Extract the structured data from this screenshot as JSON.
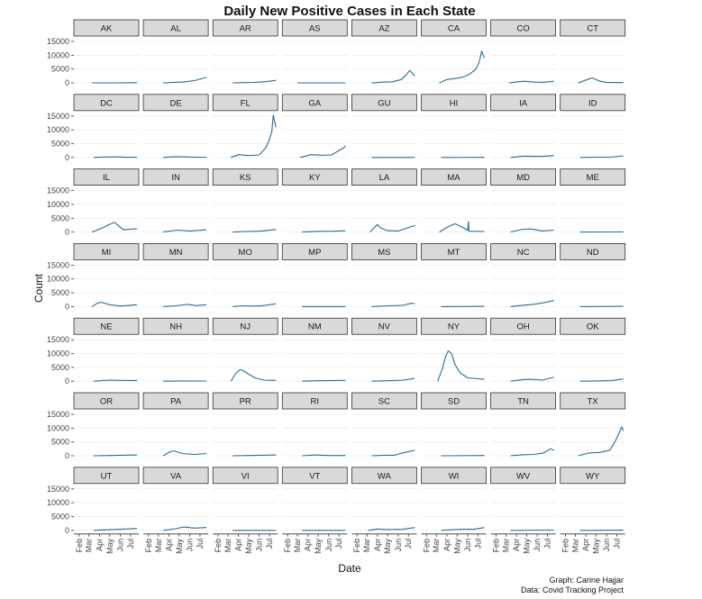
{
  "chart_data": {
    "type": "line",
    "title": "Daily New Positive Cases in Each State",
    "xlabel": "Date",
    "ylabel": "Count",
    "ylim": [
      0,
      15000
    ],
    "y_ticks": [
      0,
      5000,
      10000,
      15000
    ],
    "x_ticks": [
      "Feb",
      "Mar",
      "Apr",
      "May",
      "Jun",
      "Jul"
    ],
    "x_range": [
      "2020-01-22",
      "2020-07-20"
    ],
    "facets": {
      "ncol": 8,
      "nrow": 7
    },
    "series_color": "#2e6b96",
    "strip_color": "#d9d9d9",
    "caption": [
      "Graph: Carine Hajjar",
      "Data: Covid Tracking Project"
    ],
    "series": [
      {
        "name": "AK",
        "dates": [
          "2020-03-10",
          "2020-04-15",
          "2020-05-20",
          "2020-06-20",
          "2020-07-20"
        ],
        "values": [
          0,
          5,
          10,
          20,
          60
        ]
      },
      {
        "name": "AL",
        "dates": [
          "2020-03-15",
          "2020-04-15",
          "2020-05-15",
          "2020-06-15",
          "2020-07-05",
          "2020-07-20"
        ],
        "values": [
          0,
          200,
          350,
          800,
          1500,
          2000
        ]
      },
      {
        "name": "AR",
        "dates": [
          "2020-03-15",
          "2020-04-15",
          "2020-05-15",
          "2020-06-15",
          "2020-07-05",
          "2020-07-20"
        ],
        "values": [
          0,
          100,
          150,
          400,
          700,
          900
        ]
      },
      {
        "name": "AS",
        "dates": [
          "2020-03-01",
          "2020-07-20"
        ],
        "values": [
          0,
          0
        ]
      },
      {
        "name": "AZ",
        "dates": [
          "2020-03-15",
          "2020-04-15",
          "2020-05-15",
          "2020-06-10",
          "2020-06-25",
          "2020-07-05",
          "2020-07-12",
          "2020-07-20"
        ],
        "values": [
          0,
          250,
          400,
          1200,
          3000,
          4500,
          3500,
          2500
        ]
      },
      {
        "name": "CA",
        "dates": [
          "2020-03-10",
          "2020-04-01",
          "2020-04-20",
          "2020-05-15",
          "2020-06-05",
          "2020-06-25",
          "2020-07-05",
          "2020-07-12",
          "2020-07-20"
        ],
        "values": [
          0,
          1200,
          1500,
          2000,
          3000,
          5000,
          7500,
          11500,
          9000
        ]
      },
      {
        "name": "CO",
        "dates": [
          "2020-03-10",
          "2020-04-05",
          "2020-04-25",
          "2020-05-20",
          "2020-06-20",
          "2020-07-20"
        ],
        "values": [
          0,
          400,
          600,
          300,
          200,
          600
        ]
      },
      {
        "name": "CT",
        "dates": [
          "2020-03-10",
          "2020-04-05",
          "2020-04-20",
          "2020-05-10",
          "2020-06-01",
          "2020-07-20"
        ],
        "values": [
          0,
          1200,
          1800,
          700,
          200,
          100
        ]
      },
      {
        "name": "DC",
        "dates": [
          "2020-03-15",
          "2020-04-20",
          "2020-05-20",
          "2020-06-20",
          "2020-07-20"
        ],
        "values": [
          0,
          150,
          200,
          50,
          70
        ]
      },
      {
        "name": "DE",
        "dates": [
          "2020-03-15",
          "2020-04-20",
          "2020-05-20",
          "2020-06-20",
          "2020-07-20"
        ],
        "values": [
          0,
          300,
          200,
          80,
          100
        ]
      },
      {
        "name": "FL",
        "dates": [
          "2020-03-10",
          "2020-04-01",
          "2020-05-01",
          "2020-06-01",
          "2020-06-20",
          "2020-07-01",
          "2020-07-08",
          "2020-07-12",
          "2020-07-20"
        ],
        "values": [
          0,
          1000,
          700,
          900,
          3500,
          6500,
          9500,
          15300,
          11000
        ]
      },
      {
        "name": "GA",
        "dates": [
          "2020-03-10",
          "2020-04-10",
          "2020-05-10",
          "2020-06-10",
          "2020-07-01",
          "2020-07-15",
          "2020-07-20"
        ],
        "values": [
          0,
          1000,
          800,
          900,
          2500,
          3500,
          4200
        ]
      },
      {
        "name": "GU",
        "dates": [
          "2020-03-15",
          "2020-07-20"
        ],
        "values": [
          0,
          10
        ]
      },
      {
        "name": "HI",
        "dates": [
          "2020-03-15",
          "2020-07-20"
        ],
        "values": [
          0,
          20
        ]
      },
      {
        "name": "IA",
        "dates": [
          "2020-03-15",
          "2020-04-25",
          "2020-05-20",
          "2020-06-20",
          "2020-07-20"
        ],
        "values": [
          0,
          500,
          400,
          400,
          700
        ]
      },
      {
        "name": "ID",
        "dates": [
          "2020-03-15",
          "2020-04-20",
          "2020-06-15",
          "2020-07-20"
        ],
        "values": [
          0,
          100,
          100,
          600
        ]
      },
      {
        "name": "IL",
        "dates": [
          "2020-03-10",
          "2020-04-10",
          "2020-05-01",
          "2020-05-15",
          "2020-06-10",
          "2020-07-20"
        ],
        "values": [
          0,
          1500,
          2800,
          3500,
          800,
          1200
        ]
      },
      {
        "name": "IN",
        "dates": [
          "2020-03-15",
          "2020-04-25",
          "2020-06-01",
          "2020-07-20"
        ],
        "values": [
          0,
          700,
          400,
          800
        ]
      },
      {
        "name": "KS",
        "dates": [
          "2020-03-15",
          "2020-04-20",
          "2020-06-01",
          "2020-07-20"
        ],
        "values": [
          0,
          200,
          300,
          900
        ]
      },
      {
        "name": "KY",
        "dates": [
          "2020-03-15",
          "2020-05-01",
          "2020-06-15",
          "2020-07-20"
        ],
        "values": [
          0,
          250,
          300,
          500
        ]
      },
      {
        "name": "LA",
        "dates": [
          "2020-03-10",
          "2020-04-01",
          "2020-04-10",
          "2020-05-01",
          "2020-06-01",
          "2020-07-10",
          "2020-07-20"
        ],
        "values": [
          0,
          2700,
          1500,
          500,
          400,
          2000,
          2300
        ]
      },
      {
        "name": "MA",
        "dates": [
          "2020-03-10",
          "2020-04-05",
          "2020-04-25",
          "2020-05-20",
          "2020-06-01",
          "2020-06-03",
          "2020-06-05",
          "2020-07-20"
        ],
        "values": [
          0,
          2000,
          3000,
          1500,
          600,
          3800,
          300,
          200
        ]
      },
      {
        "name": "MD",
        "dates": [
          "2020-03-15",
          "2020-04-20",
          "2020-05-15",
          "2020-06-15",
          "2020-07-20"
        ],
        "values": [
          0,
          1000,
          1100,
          400,
          700
        ]
      },
      {
        "name": "ME",
        "dates": [
          "2020-03-15",
          "2020-07-20"
        ],
        "values": [
          0,
          30
        ]
      },
      {
        "name": "MI",
        "dates": [
          "2020-03-10",
          "2020-03-25",
          "2020-04-05",
          "2020-05-01",
          "2020-06-01",
          "2020-07-20"
        ],
        "values": [
          0,
          1200,
          1600,
          700,
          200,
          700
        ]
      },
      {
        "name": "MN",
        "dates": [
          "2020-03-15",
          "2020-04-20",
          "2020-05-25",
          "2020-06-20",
          "2020-07-20"
        ],
        "values": [
          0,
          300,
          800,
          400,
          700
        ]
      },
      {
        "name": "MO",
        "dates": [
          "2020-03-15",
          "2020-04-10",
          "2020-06-01",
          "2020-07-20"
        ],
        "values": [
          0,
          300,
          200,
          1000
        ]
      },
      {
        "name": "MP",
        "dates": [
          "2020-03-15",
          "2020-07-20"
        ],
        "values": [
          0,
          0
        ]
      },
      {
        "name": "MS",
        "dates": [
          "2020-03-15",
          "2020-05-01",
          "2020-06-15",
          "2020-07-10",
          "2020-07-20"
        ],
        "values": [
          0,
          300,
          500,
          1200,
          1100
        ]
      },
      {
        "name": "MT",
        "dates": [
          "2020-03-15",
          "2020-07-20"
        ],
        "values": [
          0,
          100
        ]
      },
      {
        "name": "NC",
        "dates": [
          "2020-03-15",
          "2020-04-20",
          "2020-05-20",
          "2020-06-20",
          "2020-07-20"
        ],
        "values": [
          0,
          500,
          800,
          1400,
          2200
        ]
      },
      {
        "name": "ND",
        "dates": [
          "2020-03-15",
          "2020-07-20"
        ],
        "values": [
          0,
          100
        ]
      },
      {
        "name": "NE",
        "dates": [
          "2020-03-15",
          "2020-05-01",
          "2020-06-01",
          "2020-07-20"
        ],
        "values": [
          0,
          400,
          300,
          250
        ]
      },
      {
        "name": "NH",
        "dates": [
          "2020-03-15",
          "2020-05-01",
          "2020-07-20"
        ],
        "values": [
          0,
          100,
          50
        ]
      },
      {
        "name": "NJ",
        "dates": [
          "2020-03-10",
          "2020-03-25",
          "2020-04-05",
          "2020-04-15",
          "2020-05-01",
          "2020-05-20",
          "2020-06-15",
          "2020-07-20"
        ],
        "values": [
          0,
          3000,
          4200,
          3800,
          2500,
          1200,
          400,
          300
        ]
      },
      {
        "name": "NM",
        "dates": [
          "2020-03-15",
          "2020-05-01",
          "2020-07-20"
        ],
        "values": [
          0,
          150,
          300
        ]
      },
      {
        "name": "NV",
        "dates": [
          "2020-03-15",
          "2020-05-01",
          "2020-06-15",
          "2020-07-20"
        ],
        "values": [
          0,
          150,
          400,
          1000
        ]
      },
      {
        "name": "NY",
        "dates": [
          "2020-03-05",
          "2020-03-20",
          "2020-03-28",
          "2020-04-05",
          "2020-04-15",
          "2020-04-25",
          "2020-05-10",
          "2020-06-01",
          "2020-07-20"
        ],
        "values": [
          0,
          5000,
          9000,
          11000,
          10000,
          6000,
          3000,
          1200,
          700
        ]
      },
      {
        "name": "OH",
        "dates": [
          "2020-03-15",
          "2020-04-20",
          "2020-05-15",
          "2020-06-15",
          "2020-07-20"
        ],
        "values": [
          0,
          600,
          700,
          400,
          1400
        ]
      },
      {
        "name": "OK",
        "dates": [
          "2020-03-15",
          "2020-05-01",
          "2020-06-15",
          "2020-07-20"
        ],
        "values": [
          0,
          100,
          200,
          800
        ]
      },
      {
        "name": "OR",
        "dates": [
          "2020-03-15",
          "2020-05-01",
          "2020-07-20"
        ],
        "values": [
          0,
          100,
          300
        ]
      },
      {
        "name": "PA",
        "dates": [
          "2020-03-15",
          "2020-04-05",
          "2020-04-15",
          "2020-05-10",
          "2020-06-15",
          "2020-07-20"
        ],
        "values": [
          0,
          1500,
          1800,
          800,
          500,
          800
        ]
      },
      {
        "name": "PR",
        "dates": [
          "2020-03-15",
          "2020-05-01",
          "2020-07-20"
        ],
        "values": [
          0,
          100,
          300
        ]
      },
      {
        "name": "RI",
        "dates": [
          "2020-03-15",
          "2020-04-20",
          "2020-06-01",
          "2020-07-20"
        ],
        "values": [
          0,
          300,
          100,
          100
        ]
      },
      {
        "name": "SC",
        "dates": [
          "2020-03-15",
          "2020-04-20",
          "2020-05-20",
          "2020-06-20",
          "2020-07-20"
        ],
        "values": [
          0,
          200,
          200,
          1200,
          2000
        ]
      },
      {
        "name": "SD",
        "dates": [
          "2020-03-15",
          "2020-07-20"
        ],
        "values": [
          0,
          100
        ]
      },
      {
        "name": "TN",
        "dates": [
          "2020-03-15",
          "2020-04-20",
          "2020-05-20",
          "2020-06-20",
          "2020-07-10",
          "2020-07-20"
        ],
        "values": [
          0,
          400,
          500,
          1000,
          2500,
          2000
        ]
      },
      {
        "name": "TX",
        "dates": [
          "2020-03-10",
          "2020-04-10",
          "2020-05-10",
          "2020-06-10",
          "2020-06-25",
          "2020-07-05",
          "2020-07-15",
          "2020-07-20"
        ],
        "values": [
          0,
          1000,
          1200,
          2000,
          5000,
          7500,
          10500,
          9000
        ]
      },
      {
        "name": "UT",
        "dates": [
          "2020-03-15",
          "2020-04-20",
          "2020-06-01",
          "2020-07-20"
        ],
        "values": [
          0,
          200,
          400,
          700
        ]
      },
      {
        "name": "VA",
        "dates": [
          "2020-03-15",
          "2020-04-20",
          "2020-05-15",
          "2020-06-15",
          "2020-07-20"
        ],
        "values": [
          0,
          600,
          1200,
          800,
          1000
        ]
      },
      {
        "name": "VI",
        "dates": [
          "2020-03-15",
          "2020-07-20"
        ],
        "values": [
          0,
          10
        ]
      },
      {
        "name": "VT",
        "dates": [
          "2020-03-15",
          "2020-07-20"
        ],
        "values": [
          0,
          10
        ]
      },
      {
        "name": "WA",
        "dates": [
          "2020-03-05",
          "2020-04-01",
          "2020-05-01",
          "2020-06-15",
          "2020-07-20"
        ],
        "values": [
          0,
          500,
          300,
          400,
          1000
        ]
      },
      {
        "name": "WI",
        "dates": [
          "2020-03-15",
          "2020-04-20",
          "2020-05-20",
          "2020-06-20",
          "2020-07-20"
        ],
        "values": [
          0,
          300,
          400,
          400,
          1000
        ]
      },
      {
        "name": "WV",
        "dates": [
          "2020-03-15",
          "2020-07-20"
        ],
        "values": [
          0,
          100
        ]
      },
      {
        "name": "WY",
        "dates": [
          "2020-03-15",
          "2020-07-20"
        ],
        "values": [
          0,
          50
        ]
      }
    ]
  }
}
